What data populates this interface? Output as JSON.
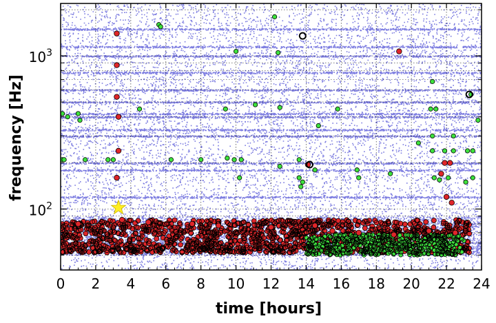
{
  "chart_data": {
    "type": "scatter",
    "title": "",
    "xlabel": "time [hours]",
    "ylabel": "frequency [Hz]",
    "xlim": [
      0,
      24
    ],
    "ylim": [
      40,
      2200
    ],
    "y_scale": "log",
    "grid": true,
    "grid_style": "dotted",
    "x_ticks": [
      0,
      2,
      4,
      6,
      8,
      10,
      12,
      14,
      16,
      18,
      20,
      22,
      24
    ],
    "x_tick_labels": [
      "0",
      "2",
      "4",
      "6",
      "8",
      "10",
      "12",
      "14",
      "16",
      "18",
      "20",
      "22",
      "24"
    ],
    "y_ticks": [
      100,
      1000
    ],
    "y_tick_labels": [
      {
        "base": "10",
        "exp": "2"
      },
      {
        "base": "10",
        "exp": "3"
      }
    ],
    "colors": {
      "background_triggers": "#7b7be0",
      "red_events": "#e0262a",
      "green_events": "#3ee23e",
      "marker_edge": "#000000",
      "star": "#ffee22"
    },
    "series": [
      {
        "marker": "small-dot",
        "color": "#7b7be0",
        "description_values": "dense background of many thousands of low-significance points covering the full time range and frequency range, with horizontal bands at fixed frequencies",
        "bands_hz": [
          60,
          120,
          180,
          200,
          300,
          330,
          400,
          420,
          500,
          600,
          780,
          1000,
          1150,
          1500
        ]
      },
      {
        "marker": "red-circle",
        "color": "#e0262a",
        "points": [
          [
            3.2,
            1400
          ],
          [
            3.2,
            870
          ],
          [
            3.2,
            540
          ],
          [
            3.3,
            400
          ],
          [
            3.3,
            240
          ],
          [
            3.2,
            160
          ],
          [
            14.1,
            195
          ],
          [
            19.3,
            1070
          ],
          [
            21.9,
            200
          ],
          [
            22.2,
            200
          ],
          [
            21.7,
            170
          ],
          [
            22.0,
            120
          ],
          [
            22.3,
            110
          ],
          [
            3.5,
            85
          ],
          [
            1.0,
            80
          ],
          [
            5.0,
            82
          ],
          [
            7.5,
            80
          ],
          [
            9.0,
            78
          ],
          [
            12.0,
            76
          ],
          [
            14.5,
            78
          ],
          [
            15.5,
            72
          ],
          [
            17.0,
            70
          ],
          [
            19.0,
            68
          ],
          [
            21.0,
            72
          ],
          [
            22.5,
            70
          ]
        ],
        "description": "dense cluster of events between 50 Hz and 85 Hz from 0 to ~23 hours"
      },
      {
        "marker": "green-circle",
        "color": "#3ee23e",
        "points": [
          [
            5.6,
            1600
          ],
          [
            5.7,
            1550
          ],
          [
            12.2,
            1800
          ],
          [
            10.0,
            1070
          ],
          [
            12.4,
            1050
          ],
          [
            21.2,
            680
          ],
          [
            23.4,
            560
          ],
          [
            0.1,
            420
          ],
          [
            0.4,
            400
          ],
          [
            1.0,
            420
          ],
          [
            1.1,
            380
          ],
          [
            4.5,
            450
          ],
          [
            9.4,
            450
          ],
          [
            11.1,
            480
          ],
          [
            12.5,
            460
          ],
          [
            15.8,
            450
          ],
          [
            21.1,
            450
          ],
          [
            21.4,
            450
          ],
          [
            23.8,
            380
          ],
          [
            0.1,
            210
          ],
          [
            0.2,
            210
          ],
          [
            1.4,
            210
          ],
          [
            2.7,
            210
          ],
          [
            3.0,
            210
          ],
          [
            6.3,
            210
          ],
          [
            8.0,
            210
          ],
          [
            9.5,
            215
          ],
          [
            9.9,
            210
          ],
          [
            10.3,
            210
          ],
          [
            13.6,
            210
          ],
          [
            20.4,
            270
          ],
          [
            21.2,
            300
          ],
          [
            22.4,
            300
          ],
          [
            21.2,
            240
          ],
          [
            21.9,
            240
          ],
          [
            22.4,
            240
          ],
          [
            23.2,
            240
          ],
          [
            23.5,
            240
          ],
          [
            10.2,
            160
          ],
          [
            13.6,
            160
          ],
          [
            12.5,
            190
          ],
          [
            14.7,
            350
          ],
          [
            16.9,
            180
          ],
          [
            17.0,
            160
          ],
          [
            18.8,
            170
          ],
          [
            21.3,
            160
          ],
          [
            21.6,
            155
          ],
          [
            22.1,
            160
          ],
          [
            23.1,
            150
          ],
          [
            23.5,
            160
          ],
          [
            13.8,
            150
          ],
          [
            13.7,
            140
          ],
          [
            14.5,
            180
          ]
        ],
        "description": "dense cluster between 50 Hz and 70 Hz concentrated from ~14 to 23 hours"
      },
      {
        "marker": "black-ring",
        "color": "#000000",
        "points": [
          [
            13.8,
            1350
          ],
          [
            14.2,
            195
          ],
          [
            23.3,
            560
          ]
        ]
      },
      {
        "marker": "star",
        "color": "#ffee22",
        "points": [
          [
            3.3,
            102
          ]
        ]
      }
    ]
  }
}
